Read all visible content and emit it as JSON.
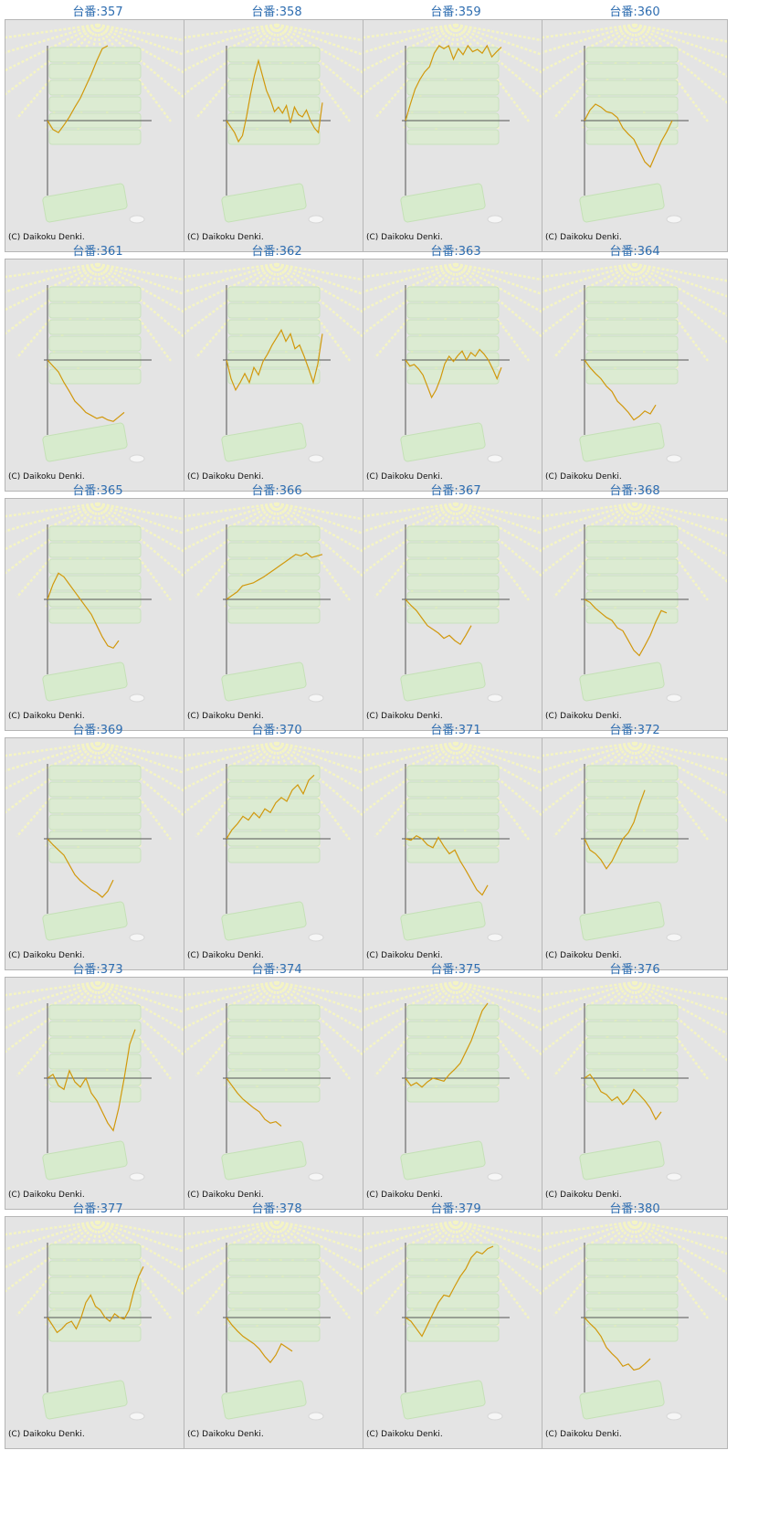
{
  "copyright": "(C) Daikoku Denki.",
  "accent_color": "#2e6db0",
  "line_color": "#d1980c",
  "machines": [
    {
      "label": "台番:357",
      "values": [
        0,
        -12,
        -16,
        -6,
        5,
        18,
        30,
        46,
        62,
        80,
        96,
        100
      ]
    },
    {
      "label": "台番:358",
      "values": [
        0,
        -8,
        -16,
        -28,
        -20,
        5,
        35,
        60,
        80,
        60,
        40,
        28,
        12,
        18,
        10,
        20,
        -3,
        18,
        8,
        5,
        14,
        0,
        -10,
        -16,
        24
      ]
    },
    {
      "label": "台番:359",
      "values": [
        0,
        22,
        42,
        55,
        65,
        72,
        90,
        100,
        96,
        100,
        82,
        96,
        88,
        100,
        92,
        95,
        90,
        100,
        85,
        92,
        98
      ]
    },
    {
      "label": "台番:360",
      "values": [
        0,
        14,
        22,
        18,
        12,
        10,
        4,
        -10,
        -18,
        -25,
        -40,
        -55,
        -62,
        -45,
        -28,
        -15,
        0
      ]
    },
    {
      "label": "台番:361",
      "values": [
        0,
        -8,
        -16,
        -30,
        -42,
        -55,
        -62,
        -70,
        -74,
        -78,
        -76,
        -80,
        -82,
        -76,
        -70
      ]
    },
    {
      "label": "台番:362",
      "values": [
        0,
        -25,
        -40,
        -30,
        -18,
        -30,
        -10,
        -20,
        -2,
        8,
        20,
        30,
        40,
        25,
        35,
        15,
        20,
        5,
        -12,
        -30,
        -5,
        35
      ]
    },
    {
      "label": "台番:363",
      "values": [
        0,
        -8,
        -6,
        -12,
        -20,
        -35,
        -50,
        -40,
        -25,
        -5,
        5,
        -2,
        6,
        12,
        0,
        10,
        5,
        14,
        8,
        0,
        -12,
        -25,
        -10
      ]
    },
    {
      "label": "台番:364",
      "values": [
        0,
        -10,
        -18,
        -25,
        -35,
        -42,
        -55,
        -62,
        -70,
        -80,
        -75,
        -68,
        -72,
        -60
      ]
    },
    {
      "label": "台番:365",
      "values": [
        0,
        20,
        35,
        30,
        20,
        10,
        0,
        -10,
        -20,
        -35,
        -50,
        -62,
        -65,
        -55
      ]
    },
    {
      "label": "台番:366",
      "values": [
        0,
        5,
        10,
        18,
        20,
        22,
        26,
        30,
        35,
        40,
        45,
        50,
        55,
        60,
        58,
        62,
        56,
        58,
        60
      ]
    },
    {
      "label": "台番:367",
      "values": [
        0,
        -8,
        -15,
        -25,
        -35,
        -40,
        -45,
        -52,
        -48,
        -55,
        -60,
        -48,
        -35
      ]
    },
    {
      "label": "台番:368",
      "values": [
        0,
        -4,
        -12,
        -18,
        -24,
        -28,
        -38,
        -42,
        -55,
        -68,
        -75,
        -62,
        -48,
        -30,
        -15,
        -18
      ]
    },
    {
      "label": "台番:369",
      "values": [
        0,
        -8,
        -15,
        -22,
        -35,
        -48,
        -56,
        -62,
        -68,
        -72,
        -78,
        -70,
        -55
      ]
    },
    {
      "label": "台番:370",
      "values": [
        0,
        12,
        20,
        30,
        25,
        35,
        28,
        40,
        35,
        48,
        55,
        50,
        65,
        72,
        60,
        78,
        85
      ]
    },
    {
      "label": "台番:371",
      "values": [
        0,
        -2,
        4,
        0,
        -8,
        -12,
        2,
        -10,
        -20,
        -15,
        -30,
        -42,
        -55,
        -68,
        -75,
        -62
      ]
    },
    {
      "label": "台番:372",
      "values": [
        0,
        -15,
        -20,
        -28,
        -40,
        -30,
        -15,
        0,
        8,
        22,
        45,
        65
      ]
    },
    {
      "label": "台番:373",
      "values": [
        0,
        5,
        -10,
        -15,
        10,
        -5,
        -12,
        0,
        -20,
        -30,
        -45,
        -60,
        -70,
        -40,
        0,
        45,
        65
      ]
    },
    {
      "label": "台番:374",
      "values": [
        0,
        -10,
        -20,
        -28,
        -34,
        -40,
        -45,
        -55,
        -60,
        -58,
        -64
      ]
    },
    {
      "label": "台番:375",
      "values": [
        0,
        -10,
        -6,
        -12,
        -5,
        0,
        -2,
        -4,
        5,
        12,
        20,
        35,
        50,
        70,
        90,
        100
      ]
    },
    {
      "label": "台番:376",
      "values": [
        0,
        5,
        -5,
        -18,
        -22,
        -30,
        -25,
        -35,
        -28,
        -15,
        -22,
        -30,
        -40,
        -55,
        -45
      ]
    },
    {
      "label": "台番:377",
      "values": [
        0,
        -10,
        -20,
        -15,
        -8,
        -5,
        -15,
        0,
        20,
        30,
        15,
        10,
        0,
        -5,
        5,
        0,
        -2,
        10,
        35,
        55,
        68
      ]
    },
    {
      "label": "台番:378",
      "values": [
        0,
        -10,
        -18,
        -25,
        -30,
        -35,
        -42,
        -52,
        -60,
        -50,
        -35,
        -40,
        -45
      ]
    },
    {
      "label": "台番:379",
      "values": [
        0,
        -5,
        -15,
        -25,
        -10,
        5,
        20,
        30,
        28,
        42,
        55,
        65,
        80,
        88,
        85,
        92,
        95
      ]
    },
    {
      "label": "台番:380",
      "values": [
        0,
        -8,
        -15,
        -25,
        -40,
        -48,
        -55,
        -65,
        -62,
        -70,
        -68,
        -62,
        -55
      ]
    }
  ]
}
